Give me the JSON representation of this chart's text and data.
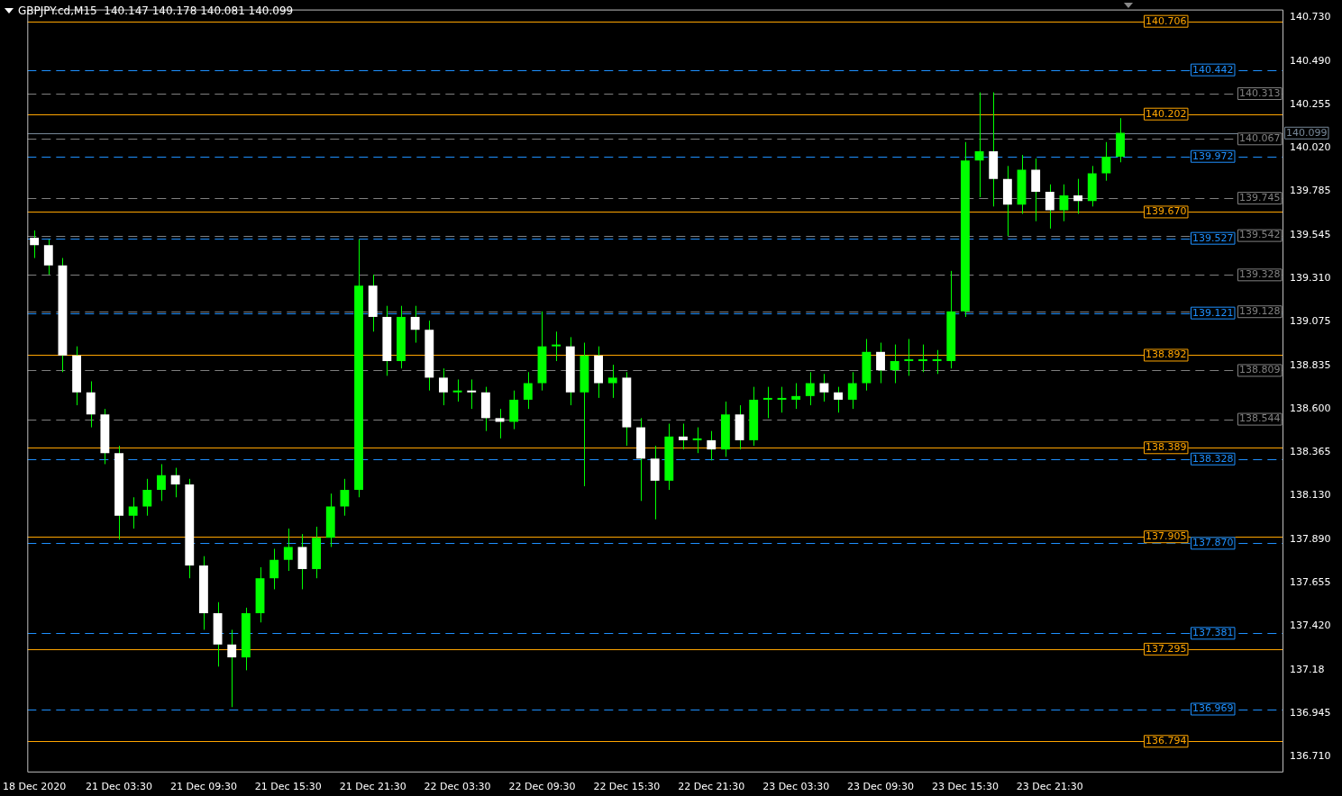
{
  "chart_data": {
    "type": "candlestick",
    "title": "GBPJPY.cd,M15  140.147 140.178 140.081 140.099",
    "color": "#00ff00",
    "colors": [
      "#ffffff",
      "#ffffff",
      "#ffffff",
      "#ffffff",
      "#ffffff",
      "#ffffff",
      "#ffffff",
      "#00ff00",
      "#00ff00",
      "#00ff00",
      "#ffffff",
      "#ffffff",
      "#ffffff",
      "#ffffff",
      "#ffffff",
      "#00ff00",
      "#00ff00",
      "#00ff00",
      "#00ff00",
      "#ffffff",
      "#00ff00",
      "#00ff00",
      "#00ff00",
      "#00ff00",
      "#ffffff",
      "#ffffff",
      "#00ff00",
      "#ffffff",
      "#ffffff",
      "#ffffff",
      "#00ff00",
      "#ffffff",
      "#ffffff",
      "#ffffff",
      "#00ff00",
      "#00ff00",
      "#00ff00",
      "#00ff00",
      "#ffffff",
      "#00ff00",
      "#ffffff",
      "#00ff00",
      "#ffffff",
      "#ffffff",
      "#ffffff",
      "#00ff00",
      "#ffffff",
      "#00ff00",
      "#ffffff",
      "#00ff00",
      "#ffffff",
      "#00ff00",
      "#00ff00",
      "#00ff00",
      "#00ff00",
      "#00ff00",
      "#ffffff",
      "#ffffff",
      "#00ff00",
      "#00ff00",
      "#ffffff",
      "#00ff00",
      "#00ff00",
      "#00ff00",
      "#00ff00",
      "#00ff00",
      "#00ff00",
      "#00ff00",
      "#ffffff",
      "#ffffff",
      "#00ff00",
      "#ffffff",
      "#ffffff",
      "#00ff00",
      "#ffffff",
      "#00ff00",
      "#00ff00",
      "#00ff00",
      null,
      null,
      null,
      null,
      null,
      null,
      null,
      null,
      null,
      null,
      null
    ],
    "categories": [
      "18 Dec 2020",
      null,
      null,
      null,
      null,
      null,
      "21 Dec 03:30",
      null,
      null,
      null,
      null,
      null,
      "21 Dec 09:30",
      null,
      null,
      null,
      null,
      null,
      "21 Dec 15:30",
      null,
      null,
      null,
      null,
      null,
      "21 Dec 21:30",
      null,
      null,
      null,
      null,
      null,
      "22 Dec 03:30",
      null,
      null,
      null,
      null,
      null,
      "22 Dec 09:30",
      null,
      null,
      null,
      null,
      null,
      "22 Dec 15:30",
      null,
      null,
      null,
      null,
      null,
      "22 Dec 21:30",
      null,
      null,
      null,
      null,
      null,
      "23 Dec 03:30",
      null,
      null,
      null,
      null,
      null,
      "23 Dec 09:30",
      null,
      null,
      null,
      null,
      null,
      "23 Dec 15:30",
      null,
      null,
      null,
      null,
      null,
      "23 Dec 21:30",
      null,
      null,
      null,
      null,
      null,
      null,
      null,
      null,
      null,
      null,
      null,
      null,
      null,
      null,
      null,
      null
    ],
    "ohlc": [
      [
        139.53,
        139.57,
        139.42,
        139.49
      ],
      [
        139.49,
        139.52,
        139.33,
        139.38
      ],
      [
        139.38,
        139.42,
        138.8,
        138.89
      ],
      [
        138.89,
        138.94,
        138.62,
        138.69
      ],
      [
        138.69,
        138.75,
        138.5,
        138.57
      ],
      [
        138.57,
        138.6,
        138.3,
        138.36
      ],
      [
        138.36,
        138.4,
        137.89,
        138.02
      ],
      [
        138.02,
        138.12,
        137.95,
        138.07
      ],
      [
        138.07,
        138.22,
        138.02,
        138.16
      ],
      [
        138.16,
        138.3,
        138.1,
        138.24
      ],
      [
        138.24,
        138.28,
        138.12,
        138.19
      ],
      [
        138.19,
        138.22,
        137.68,
        137.75
      ],
      [
        137.75,
        137.8,
        137.4,
        137.49
      ],
      [
        137.49,
        137.55,
        137.2,
        137.32
      ],
      [
        137.32,
        137.4,
        136.98,
        137.25
      ],
      [
        137.25,
        137.52,
        137.18,
        137.49
      ],
      [
        137.49,
        137.74,
        137.44,
        137.68
      ],
      [
        137.68,
        137.84,
        137.62,
        137.78
      ],
      [
        137.78,
        137.95,
        137.72,
        137.85
      ],
      [
        137.85,
        137.92,
        137.62,
        137.73
      ],
      [
        137.73,
        137.96,
        137.68,
        137.9
      ],
      [
        137.9,
        138.14,
        137.85,
        138.07
      ],
      [
        138.07,
        138.22,
        138.02,
        138.16
      ],
      [
        138.16,
        139.52,
        138.12,
        139.27
      ],
      [
        139.27,
        139.33,
        139.02,
        139.1
      ],
      [
        139.1,
        139.16,
        138.78,
        138.86
      ],
      [
        138.86,
        139.16,
        138.82,
        139.1
      ],
      [
        139.1,
        139.16,
        138.96,
        139.03
      ],
      [
        139.03,
        139.08,
        138.7,
        138.77
      ],
      [
        138.77,
        138.82,
        138.62,
        138.69
      ],
      [
        138.69,
        138.76,
        138.64,
        138.7
      ],
      [
        138.7,
        138.76,
        138.6,
        138.69
      ],
      [
        138.69,
        138.72,
        138.48,
        138.55
      ],
      [
        138.55,
        138.6,
        138.44,
        138.53
      ],
      [
        138.53,
        138.7,
        138.49,
        138.65
      ],
      [
        138.65,
        138.8,
        138.6,
        138.74
      ],
      [
        138.74,
        139.13,
        138.7,
        138.94
      ],
      [
        138.94,
        139.02,
        138.86,
        138.94
      ],
      [
        138.94,
        138.99,
        138.62,
        138.69
      ],
      [
        138.69,
        138.96,
        138.18,
        138.89
      ],
      [
        138.89,
        138.94,
        138.66,
        138.74
      ],
      [
        138.74,
        138.84,
        138.66,
        138.77
      ],
      [
        138.77,
        138.8,
        138.4,
        138.5
      ],
      [
        138.5,
        138.55,
        138.1,
        138.33
      ],
      [
        138.33,
        138.4,
        138.0,
        138.21
      ],
      [
        138.21,
        138.52,
        138.16,
        138.45
      ],
      [
        138.45,
        138.52,
        138.38,
        138.43
      ],
      [
        138.43,
        138.5,
        138.36,
        138.43
      ],
      [
        138.43,
        138.48,
        138.32,
        138.38
      ],
      [
        138.38,
        138.64,
        138.34,
        138.57
      ],
      [
        138.57,
        138.62,
        138.38,
        138.43
      ],
      [
        138.43,
        138.72,
        138.4,
        138.65
      ],
      [
        138.65,
        138.72,
        138.55,
        138.65
      ],
      [
        138.65,
        138.72,
        138.58,
        138.65
      ],
      [
        138.65,
        138.74,
        138.6,
        138.67
      ],
      [
        138.67,
        138.8,
        138.62,
        138.74
      ],
      [
        138.74,
        138.79,
        138.64,
        138.69
      ],
      [
        138.69,
        138.72,
        138.58,
        138.65
      ],
      [
        138.65,
        138.8,
        138.6,
        138.74
      ],
      [
        138.74,
        138.98,
        138.7,
        138.91
      ],
      [
        138.91,
        138.96,
        138.74,
        138.81
      ],
      [
        138.81,
        138.95,
        138.74,
        138.86
      ],
      [
        138.86,
        138.98,
        138.78,
        138.86
      ],
      [
        138.86,
        138.95,
        138.8,
        138.86
      ],
      [
        138.86,
        138.92,
        138.79,
        138.86
      ],
      [
        138.86,
        139.35,
        138.82,
        139.13
      ],
      [
        139.13,
        140.05,
        139.1,
        139.95
      ],
      [
        139.95,
        140.32,
        139.75,
        140.0
      ],
      [
        140.0,
        140.32,
        139.7,
        139.85
      ],
      [
        139.85,
        139.92,
        139.54,
        139.71
      ],
      [
        139.71,
        139.98,
        139.66,
        139.9
      ],
      [
        139.9,
        139.96,
        139.62,
        139.78
      ],
      [
        139.78,
        139.82,
        139.58,
        139.68
      ],
      [
        139.68,
        139.82,
        139.62,
        139.76
      ],
      [
        139.76,
        139.85,
        139.66,
        139.73
      ],
      [
        139.73,
        139.92,
        139.7,
        139.88
      ],
      [
        139.88,
        140.05,
        139.84,
        139.97
      ],
      [
        139.97,
        140.18,
        139.94,
        140.1
      ],
      null,
      null,
      null,
      null,
      null,
      null,
      null,
      null,
      null,
      null,
      null
    ],
    "ylim": [
      136.63,
      140.77
    ],
    "yticks": [
      {
        "value": 136.71,
        "label": "136.710"
      },
      136.945,
      137.18,
      {
        "value": 137.42,
        "label": "137.420"
      },
      137.655,
      {
        "value": 137.89,
        "label": "137.890"
      },
      {
        "value": 138.13,
        "label": "138.130"
      },
      138.365,
      {
        "value": 138.6,
        "label": "138.600"
      },
      138.835,
      139.075,
      {
        "value": 139.31,
        "label": "139.310"
      },
      139.545,
      139.785,
      {
        "value": 140.02,
        "label": "140.020"
      },
      140.255,
      {
        "value": 140.49,
        "label": "140.490"
      },
      {
        "value": 140.73,
        "label": "140.730"
      }
    ],
    "ref_lines": [
      {
        "axis": "y",
        "value": 140.706,
        "label": "140.706",
        "color": "#ffa500",
        "line_style": "solid"
      },
      {
        "axis": "y",
        "value": 140.202,
        "label": "140.202",
        "color": "#ffa500",
        "line_style": "solid"
      },
      {
        "axis": "y",
        "value": 139.67,
        "label": "139.670",
        "color": "#ffa500",
        "line_style": "solid"
      },
      {
        "axis": "y",
        "value": 138.892,
        "label": "138.892",
        "color": "#ffa500",
        "line_style": "solid"
      },
      {
        "axis": "y",
        "value": 138.389,
        "label": "138.389",
        "color": "#ffa500",
        "line_style": "solid"
      },
      {
        "axis": "y",
        "value": 137.905,
        "label": "137.905",
        "color": "#ffa500",
        "line_style": "solid"
      },
      {
        "axis": "y",
        "value": 137.295,
        "label": "137.295",
        "color": "#ffa500",
        "line_style": "solid"
      },
      {
        "axis": "y",
        "value": 136.794,
        "label": "136.794",
        "color": "#ffa500",
        "line_style": "solid"
      },
      {
        "axis": "y",
        "value": 140.442,
        "label": "140.442",
        "color": "#1e90ff",
        "line_style": "dashed"
      },
      {
        "axis": "y",
        "value": 139.972,
        "label": "139.972",
        "color": "#1e90ff",
        "line_style": "dashed"
      },
      {
        "axis": "y",
        "value": 139.527,
        "label": "139.527",
        "color": "#1e90ff",
        "line_style": "dashed"
      },
      {
        "axis": "y",
        "value": 139.121,
        "label": "139.121",
        "color": "#1e90ff",
        "line_style": "dashed"
      },
      {
        "axis": "y",
        "value": 138.328,
        "label": "138.328",
        "color": "#1e90ff",
        "line_style": "dashed"
      },
      {
        "axis": "y",
        "value": 137.87,
        "label": "137.870",
        "color": "#1e90ff",
        "line_style": "dashed"
      },
      {
        "axis": "y",
        "value": 137.381,
        "label": "137.381",
        "color": "#1e90ff",
        "line_style": "dashed"
      },
      {
        "axis": "y",
        "value": 136.969,
        "label": "136.969",
        "color": "#1e90ff",
        "line_style": "dashed"
      },
      {
        "axis": "y",
        "value": 140.313,
        "label": "140.313",
        "color": "#808080",
        "line_style": "dashed"
      },
      {
        "axis": "y",
        "value": 140.067,
        "label": "140.067",
        "color": "#808080",
        "line_style": "dashed"
      },
      {
        "axis": "y",
        "value": 139.745,
        "label": "139.745",
        "color": "#808080",
        "line_style": "dashed"
      },
      {
        "axis": "y",
        "value": 139.542,
        "label": "139.542",
        "color": "#808080",
        "line_style": "dashed"
      },
      {
        "axis": "y",
        "value": 139.328,
        "label": "139.328",
        "color": "#808080",
        "line_style": "dashed"
      },
      {
        "axis": "y",
        "value": 139.128,
        "label": "139.128",
        "color": "#808080",
        "line_style": "dashed"
      },
      {
        "axis": "y",
        "value": 138.809,
        "label": "138.809",
        "color": "#808080",
        "line_style": "dashed"
      },
      {
        "axis": "y",
        "value": 138.544,
        "label": "138.544",
        "color": "#808080",
        "line_style": "dashed"
      },
      {
        "axis": "y",
        "value": 140.099,
        "label": "140.099",
        "color": "#778899",
        "line_style": "solid"
      }
    ]
  }
}
